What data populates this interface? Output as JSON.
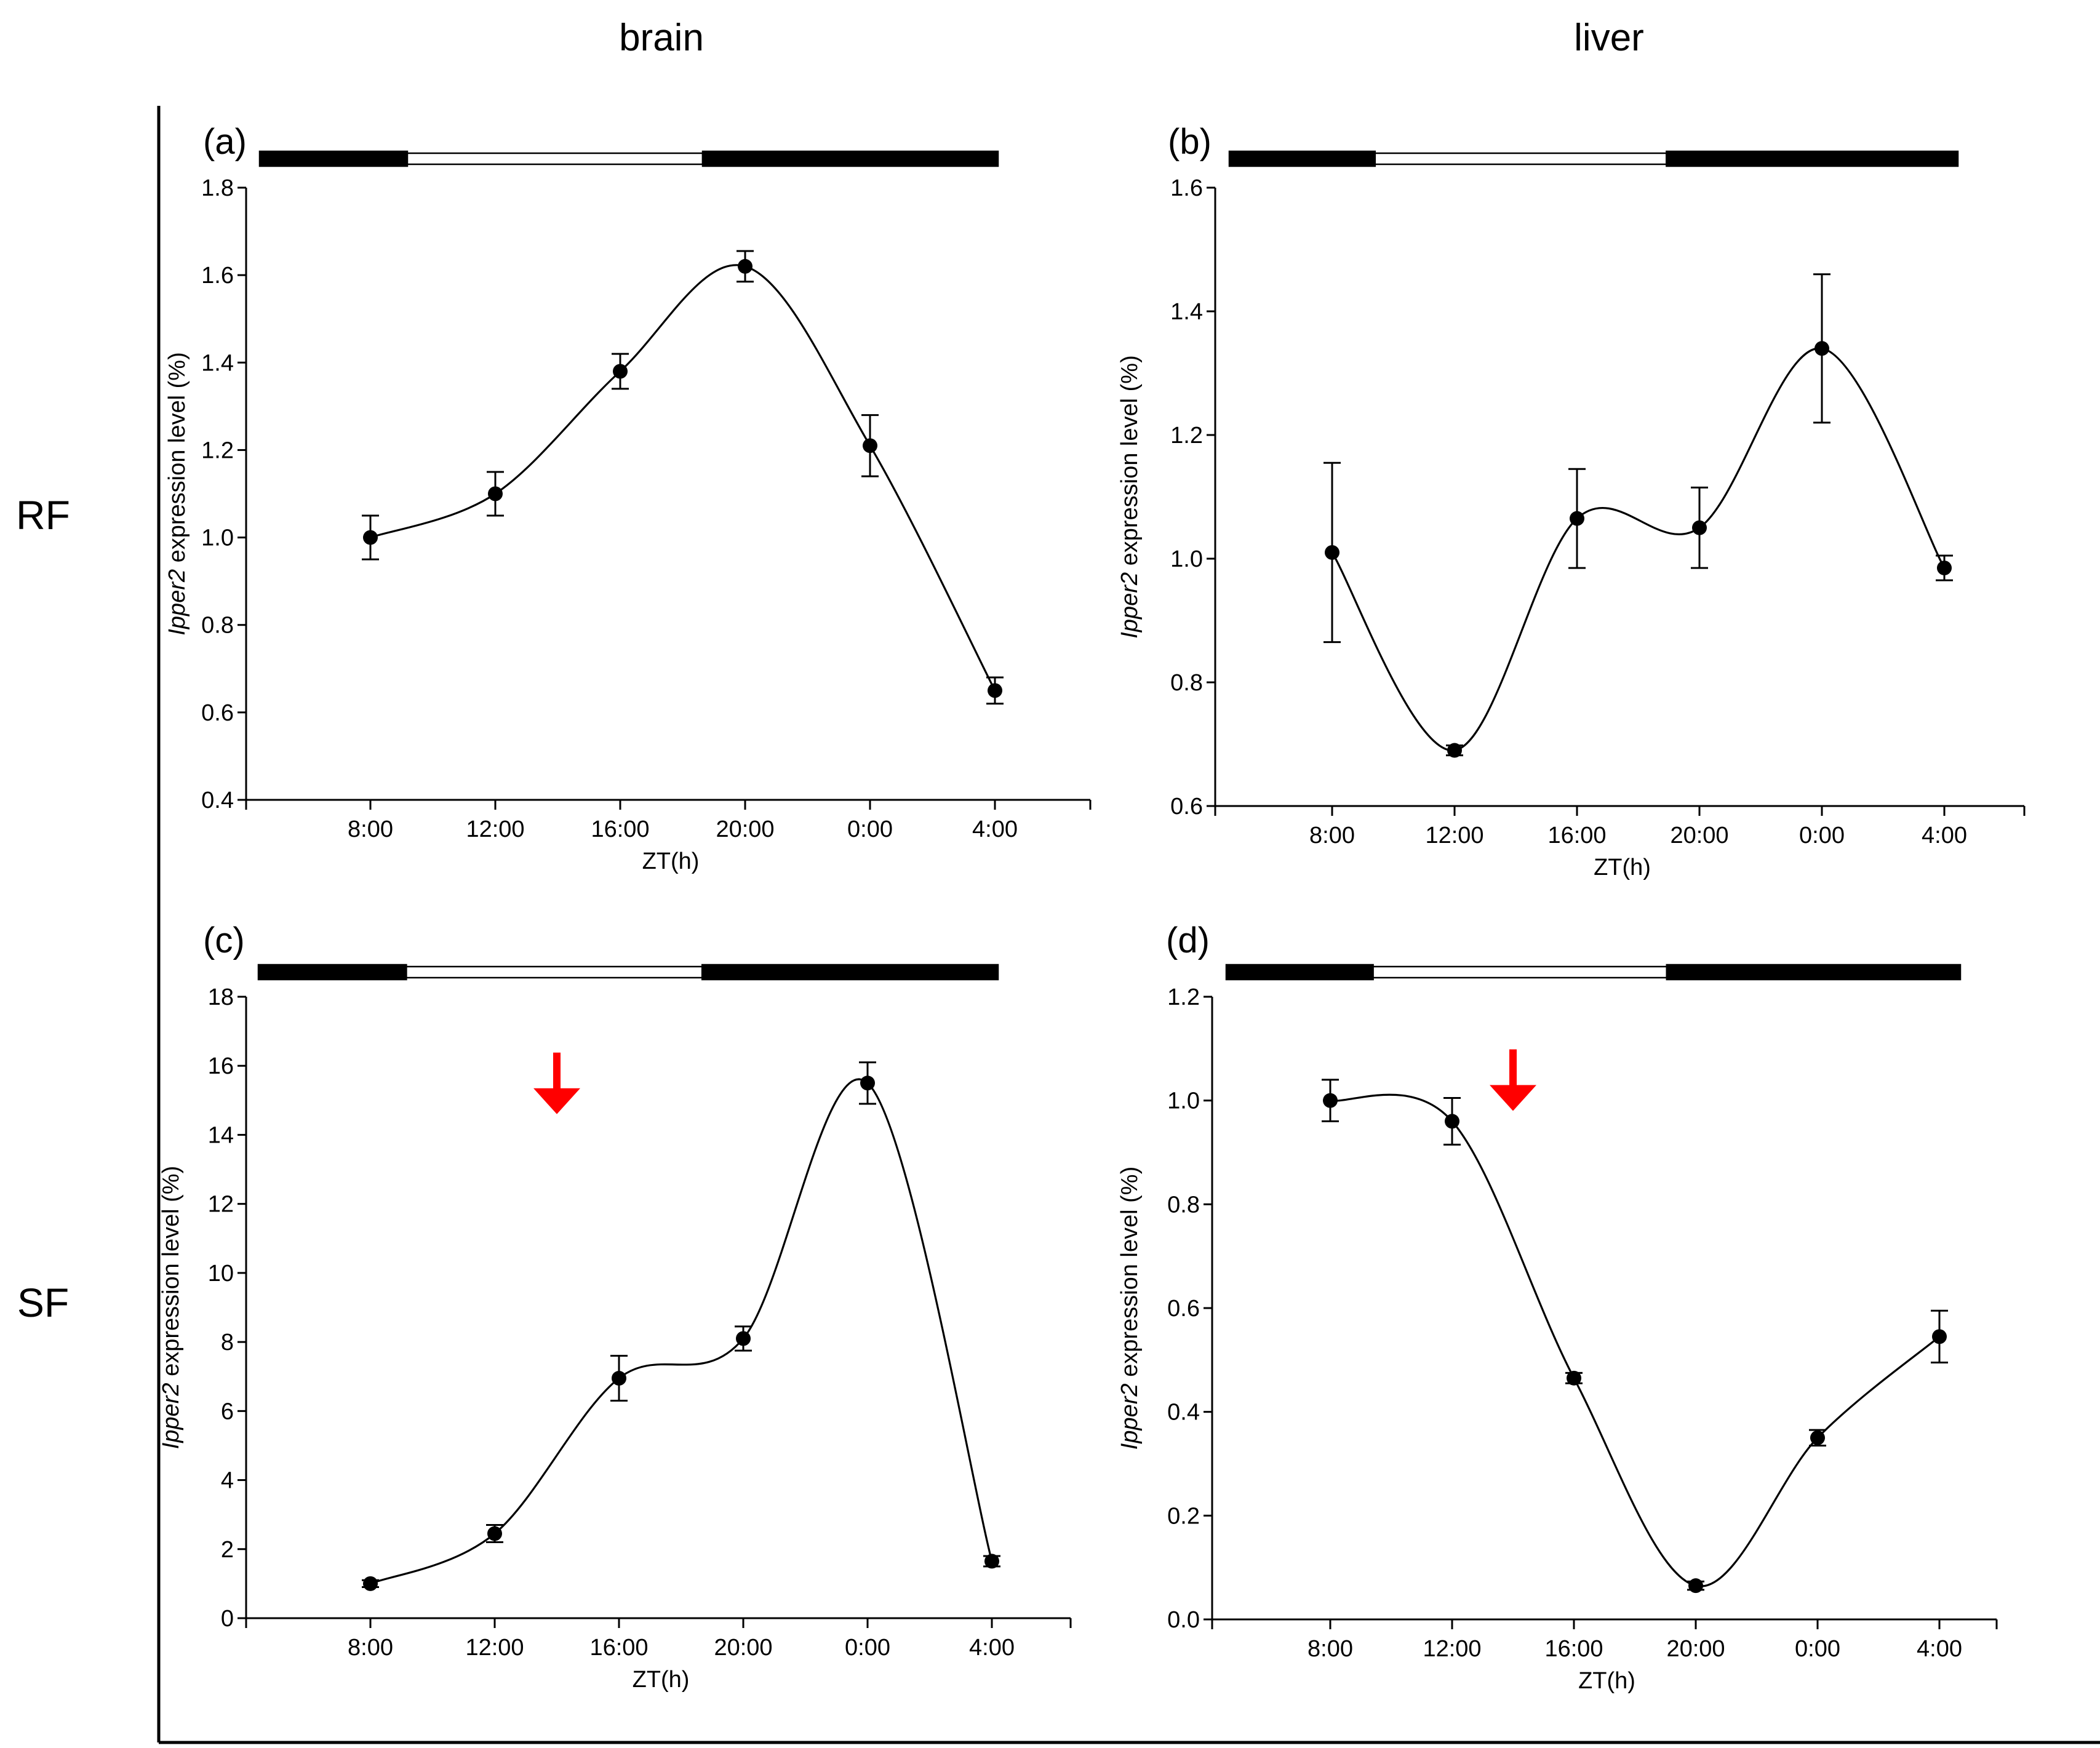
{
  "figure": {
    "column_titles": [
      "brain",
      "liver"
    ],
    "row_labels": [
      "RF",
      "SF"
    ],
    "colors": {
      "line": "#000000",
      "marker": "#000000",
      "arrow": "#ff0000",
      "dark_bar": "#000000",
      "light_bar": "#ffffff"
    }
  },
  "chart_data": [
    {
      "panel": "(a)",
      "type": "line",
      "tissue": "brain",
      "condition": "RF",
      "title": "",
      "xlabel": "ZT(h)",
      "ylabel_italic": "Ipper2",
      "ylabel_rest": " expression level (%)",
      "categories": [
        "8:00",
        "12:00",
        "16:00",
        "20:00",
        "0:00",
        "4:00"
      ],
      "values": [
        1.0,
        1.1,
        1.38,
        1.62,
        1.21,
        0.65
      ],
      "errors": [
        0.05,
        0.05,
        0.04,
        0.035,
        0.07,
        0.03
      ],
      "ylim": [
        0.4,
        1.8
      ],
      "yticks": [
        0.4,
        0.6,
        0.8,
        1.0,
        1.2,
        1.4,
        1.6,
        1.8
      ],
      "ytick_labels": [
        "0.4",
        "0.6",
        "0.8",
        "1.0",
        "1.2",
        "1.4",
        "1.6",
        "1.8"
      ],
      "light_dark_bar": [
        "dark",
        "light",
        "light",
        "dark",
        "dark"
      ],
      "arrow": false
    },
    {
      "panel": "(b)",
      "type": "line",
      "tissue": "liver",
      "condition": "RF",
      "title": "",
      "xlabel": "ZT(h)",
      "ylabel_italic": "Ipper2",
      "ylabel_rest": " expression level (%)",
      "categories": [
        "8:00",
        "12:00",
        "16:00",
        "20:00",
        "0:00",
        "4:00"
      ],
      "values": [
        1.01,
        0.69,
        1.065,
        1.05,
        1.34,
        0.985
      ],
      "errors": [
        0.145,
        0.008,
        0.08,
        0.065,
        0.12,
        0.02
      ],
      "ylim": [
        0.6,
        1.6
      ],
      "yticks": [
        0.6,
        0.8,
        1.0,
        1.2,
        1.4,
        1.6
      ],
      "ytick_labels": [
        "0.6",
        "0.8",
        "1.0",
        "1.2",
        "1.4",
        "1.6"
      ],
      "light_dark_bar": [
        "dark",
        "light",
        "light",
        "dark",
        "dark"
      ],
      "arrow": false
    },
    {
      "panel": "(c)",
      "type": "line",
      "tissue": "brain",
      "condition": "SF",
      "title": "",
      "xlabel": "ZT(h)",
      "ylabel_italic": "Ipper2",
      "ylabel_rest": " expression level (%)",
      "categories": [
        "8:00",
        "12:00",
        "16:00",
        "20:00",
        "0:00",
        "4:00"
      ],
      "values": [
        1.0,
        2.45,
        6.95,
        8.1,
        15.5,
        1.65
      ],
      "errors": [
        0.1,
        0.25,
        0.65,
        0.35,
        0.6,
        0.15
      ],
      "ylim": [
        0,
        18
      ],
      "yticks": [
        0,
        2,
        4,
        6,
        8,
        10,
        12,
        14,
        16,
        18
      ],
      "ytick_labels": [
        "0",
        "2",
        "4",
        "6",
        "8",
        "10",
        "12",
        "14",
        "16",
        "18"
      ],
      "light_dark_bar": [
        "dark",
        "light",
        "light",
        "dark",
        "dark"
      ],
      "arrow": true,
      "arrow_at_category": 1.5,
      "arrow_tip_value": 14.6
    },
    {
      "panel": "(d)",
      "type": "line",
      "tissue": "liver",
      "condition": "SF",
      "title": "",
      "xlabel": "ZT(h)",
      "ylabel_italic": "Ipper2",
      "ylabel_rest": " expression level (%)",
      "categories": [
        "8:00",
        "12:00",
        "16:00",
        "20:00",
        "0:00",
        "4:00"
      ],
      "values": [
        1.0,
        0.96,
        0.465,
        0.065,
        0.35,
        0.545
      ],
      "errors": [
        0.04,
        0.045,
        0.01,
        0.008,
        0.015,
        0.05
      ],
      "ylim": [
        0.0,
        1.2
      ],
      "yticks": [
        0.0,
        0.2,
        0.4,
        0.6,
        0.8,
        1.0,
        1.2
      ],
      "ytick_labels": [
        "0.0",
        "0.2",
        "0.4",
        "0.6",
        "0.8",
        "1.0",
        "1.2"
      ],
      "light_dark_bar": [
        "dark",
        "light",
        "light",
        "dark",
        "dark"
      ],
      "arrow": true,
      "arrow_at_category": 1.5,
      "arrow_tip_value": 0.98
    }
  ]
}
